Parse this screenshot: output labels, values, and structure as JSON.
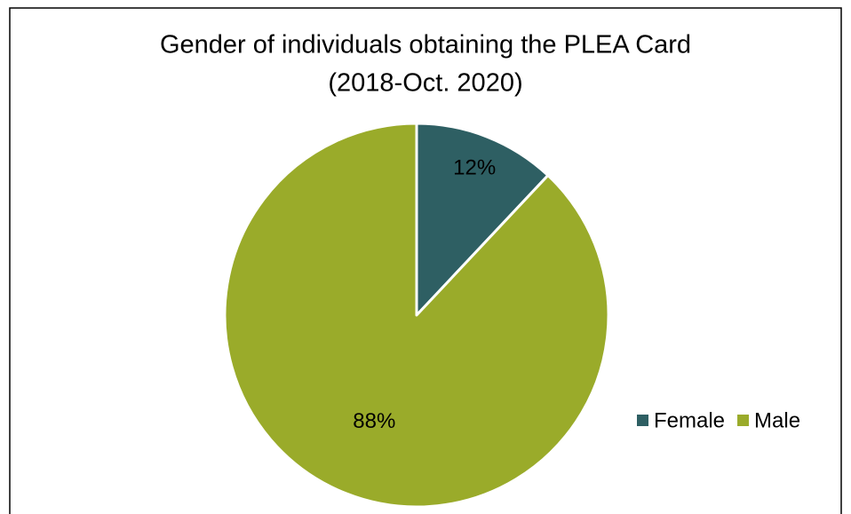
{
  "chart_data": {
    "type": "pie",
    "title": "Gender of individuals obtaining the PLEA Card",
    "subtitle": "(2018-Oct. 2020)",
    "categories": [
      "Female",
      "Male"
    ],
    "values": [
      12,
      88
    ],
    "value_labels": [
      "12%",
      "88%"
    ],
    "colors": [
      "#2e5f63",
      "#9aab2a"
    ],
    "legend": "right"
  }
}
